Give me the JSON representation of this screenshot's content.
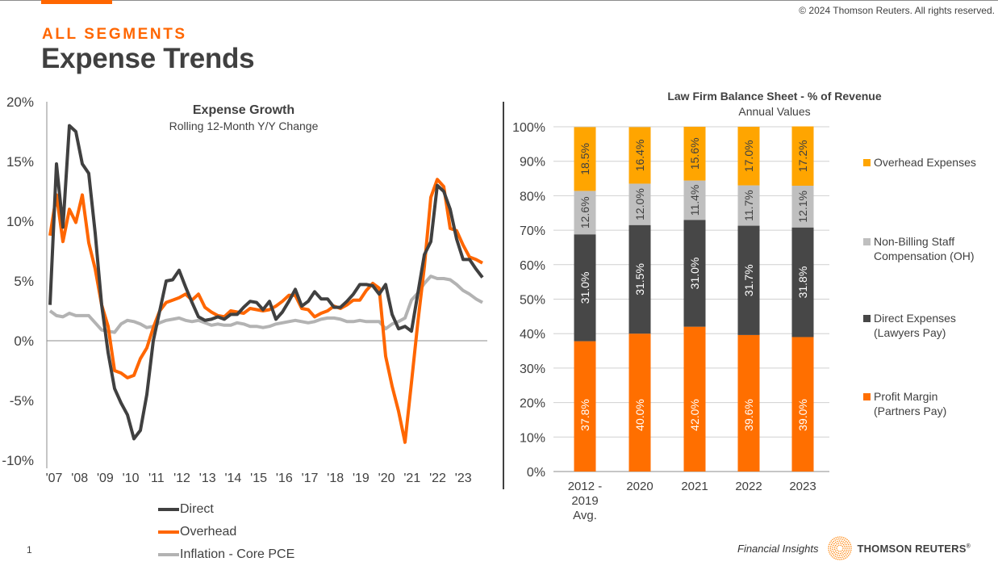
{
  "header": {
    "copyright": "© 2024 Thomson Reuters. All rights reserved.",
    "kicker": "ALL SEGMENTS",
    "title": "Expense Trends"
  },
  "colors": {
    "accent": "#ff6600",
    "direct": "#404040",
    "overhead": "#ff6600",
    "inflation": "#b3b3b3",
    "overhead_expenses_bar": "#ffa500",
    "non_billing_bar": "#bfbfbf",
    "direct_expenses_bar": "#474747",
    "profit_margin_bar": "#ff6f00"
  },
  "chart_data": [
    {
      "type": "line",
      "title": "Expense Growth",
      "subtitle": "Rolling 12-Month Y/Y Change",
      "xlabel": "",
      "ylabel": "",
      "ylim": [
        -10,
        20
      ],
      "yticks": [
        "20%",
        "15%",
        "10%",
        "5%",
        "0%",
        "-5%",
        "-10%"
      ],
      "ytick_values": [
        20,
        15,
        10,
        5,
        0,
        -5,
        -10
      ],
      "xticks": [
        "'07",
        "'08",
        "'09",
        "'10",
        "'11",
        "'12",
        "'13",
        "'14",
        "'15",
        "'16",
        "'17",
        "'18",
        "'19",
        "'20",
        "'21",
        "'22",
        "'23"
      ],
      "x_start": "2007 Q1",
      "x_frequency": "quarterly",
      "grid": false,
      "legend_position": "bottom",
      "series": [
        {
          "name": "Direct",
          "values": [
            3.0,
            14.8,
            9.5,
            18.0,
            17.5,
            14.8,
            14.0,
            9.0,
            3.0,
            -1.0,
            -4.0,
            -5.2,
            -6.2,
            -8.2,
            -7.5,
            -4.5,
            0.0,
            2.5,
            5.0,
            5.1,
            5.9,
            4.5,
            3.2,
            2.0,
            1.7,
            1.8,
            2.0,
            1.8,
            2.2,
            2.2,
            2.8,
            3.3,
            3.2,
            2.6,
            3.3,
            1.8,
            2.4,
            3.3,
            4.3,
            2.9,
            3.3,
            4.1,
            3.5,
            3.5,
            2.8,
            2.8,
            3.3,
            3.9,
            4.7,
            4.7,
            4.6,
            3.9,
            4.7,
            2.2,
            1.0,
            1.2,
            0.8,
            4.0,
            7.2,
            8.3,
            13.0,
            12.5,
            11.0,
            8.5,
            6.8,
            6.8,
            6.0,
            5.3
          ],
          "color": "#404040"
        },
        {
          "name": "Overhead",
          "values": [
            8.8,
            12.2,
            8.3,
            11.0,
            9.9,
            12.2,
            8.2,
            6.0,
            3.0,
            1.2,
            -2.5,
            -2.7,
            -3.1,
            -2.9,
            -1.5,
            -0.6,
            1.1,
            2.5,
            3.2,
            3.4,
            3.6,
            3.9,
            3.4,
            3.9,
            2.8,
            2.4,
            2.1,
            2.0,
            2.5,
            2.4,
            2.3,
            2.7,
            2.6,
            2.5,
            2.6,
            2.9,
            3.3,
            3.8,
            3.8,
            2.7,
            2.6,
            2.0,
            2.3,
            2.5,
            2.9,
            2.7,
            3.0,
            3.4,
            3.4,
            4.2,
            4.8,
            4.4,
            -1.3,
            -3.8,
            -5.9,
            -8.5,
            -3.5,
            1.6,
            6.2,
            12.0,
            13.5,
            12.9,
            9.4,
            9.2,
            8.0,
            7.0,
            6.8,
            6.5
          ],
          "color": "#ff6600"
        },
        {
          "name": "Inflation - Core PCE",
          "values": [
            2.5,
            2.1,
            2.0,
            2.3,
            2.1,
            2.1,
            2.1,
            1.5,
            0.9,
            0.8,
            0.7,
            1.4,
            1.7,
            1.6,
            1.4,
            1.1,
            1.2,
            1.5,
            1.7,
            1.8,
            1.9,
            1.7,
            1.6,
            1.7,
            1.5,
            1.3,
            1.4,
            1.3,
            1.3,
            1.5,
            1.4,
            1.2,
            1.2,
            1.1,
            1.2,
            1.4,
            1.5,
            1.6,
            1.7,
            1.6,
            1.5,
            1.6,
            1.8,
            1.9,
            1.9,
            1.8,
            1.6,
            1.6,
            1.7,
            1.6,
            1.6,
            1.6,
            1.0,
            1.4,
            1.6,
            1.9,
            3.4,
            4.0,
            4.8,
            5.4,
            5.2,
            5.2,
            5.1,
            4.7,
            4.2,
            3.9,
            3.5,
            3.2
          ],
          "color": "#b3b3b3"
        }
      ]
    },
    {
      "type": "bar",
      "stacked": true,
      "title": "Law Firm Balance Sheet - % of Revenue",
      "subtitle": "Annual Values",
      "xlabel": "",
      "ylabel": "",
      "ylim": [
        0,
        100
      ],
      "yticks": [
        "100%",
        "90%",
        "80%",
        "70%",
        "60%",
        "50%",
        "40%",
        "30%",
        "20%",
        "10%",
        "0%"
      ],
      "ytick_values": [
        100,
        90,
        80,
        70,
        60,
        50,
        40,
        30,
        20,
        10,
        0
      ],
      "grid": true,
      "legend_position": "right",
      "categories": [
        [
          "2012 -",
          "2019",
          "Avg."
        ],
        [
          "2020"
        ],
        [
          "2021"
        ],
        [
          "2022"
        ],
        [
          "2023"
        ]
      ],
      "series": [
        {
          "name": "Profit Margin (Partners Pay)",
          "legend_lines": [
            "Profit Margin",
            " (Partners Pay)"
          ],
          "values": [
            37.8,
            40.0,
            42.0,
            39.6,
            39.0
          ],
          "labels": [
            "37.8%",
            "40.0%",
            "42.0%",
            "39.6%",
            "39.0%"
          ],
          "color": "#ff6f00",
          "label_color": "#ffffff"
        },
        {
          "name": "Direct Expenses (Lawyers Pay)",
          "legend_lines": [
            "Direct Expenses",
            "(Lawyers Pay)"
          ],
          "values": [
            31.0,
            31.5,
            31.0,
            31.7,
            31.8
          ],
          "labels": [
            "31.0%",
            "31.5%",
            "31.0%",
            "31.7%",
            "31.8%"
          ],
          "color": "#474747",
          "label_color": "#ffffff"
        },
        {
          "name": "Non-Billing Staff Compensation (OH)",
          "legend_lines": [
            "Non-Billing Staff",
            "Compensation (OH)"
          ],
          "values": [
            12.6,
            12.0,
            11.4,
            11.7,
            12.1
          ],
          "labels": [
            "12.6%",
            "12.0%",
            "11.4%",
            "11.7%",
            "12.1%"
          ],
          "color": "#bfbfbf",
          "label_color": "#404040"
        },
        {
          "name": "Overhead Expenses",
          "legend_lines": [
            "Overhead Expenses"
          ],
          "values": [
            18.5,
            16.4,
            15.6,
            17.0,
            17.2
          ],
          "labels": [
            "18.5%",
            "16.4%",
            "15.6%",
            "17.0%",
            "17.2%"
          ],
          "color": "#ffa500",
          "label_color": "#404040"
        }
      ]
    }
  ],
  "footer": {
    "page_number": "1",
    "financial_insights": "Financial Insights",
    "brand": "THOMSON REUTERS",
    "brand_mark": "®"
  }
}
